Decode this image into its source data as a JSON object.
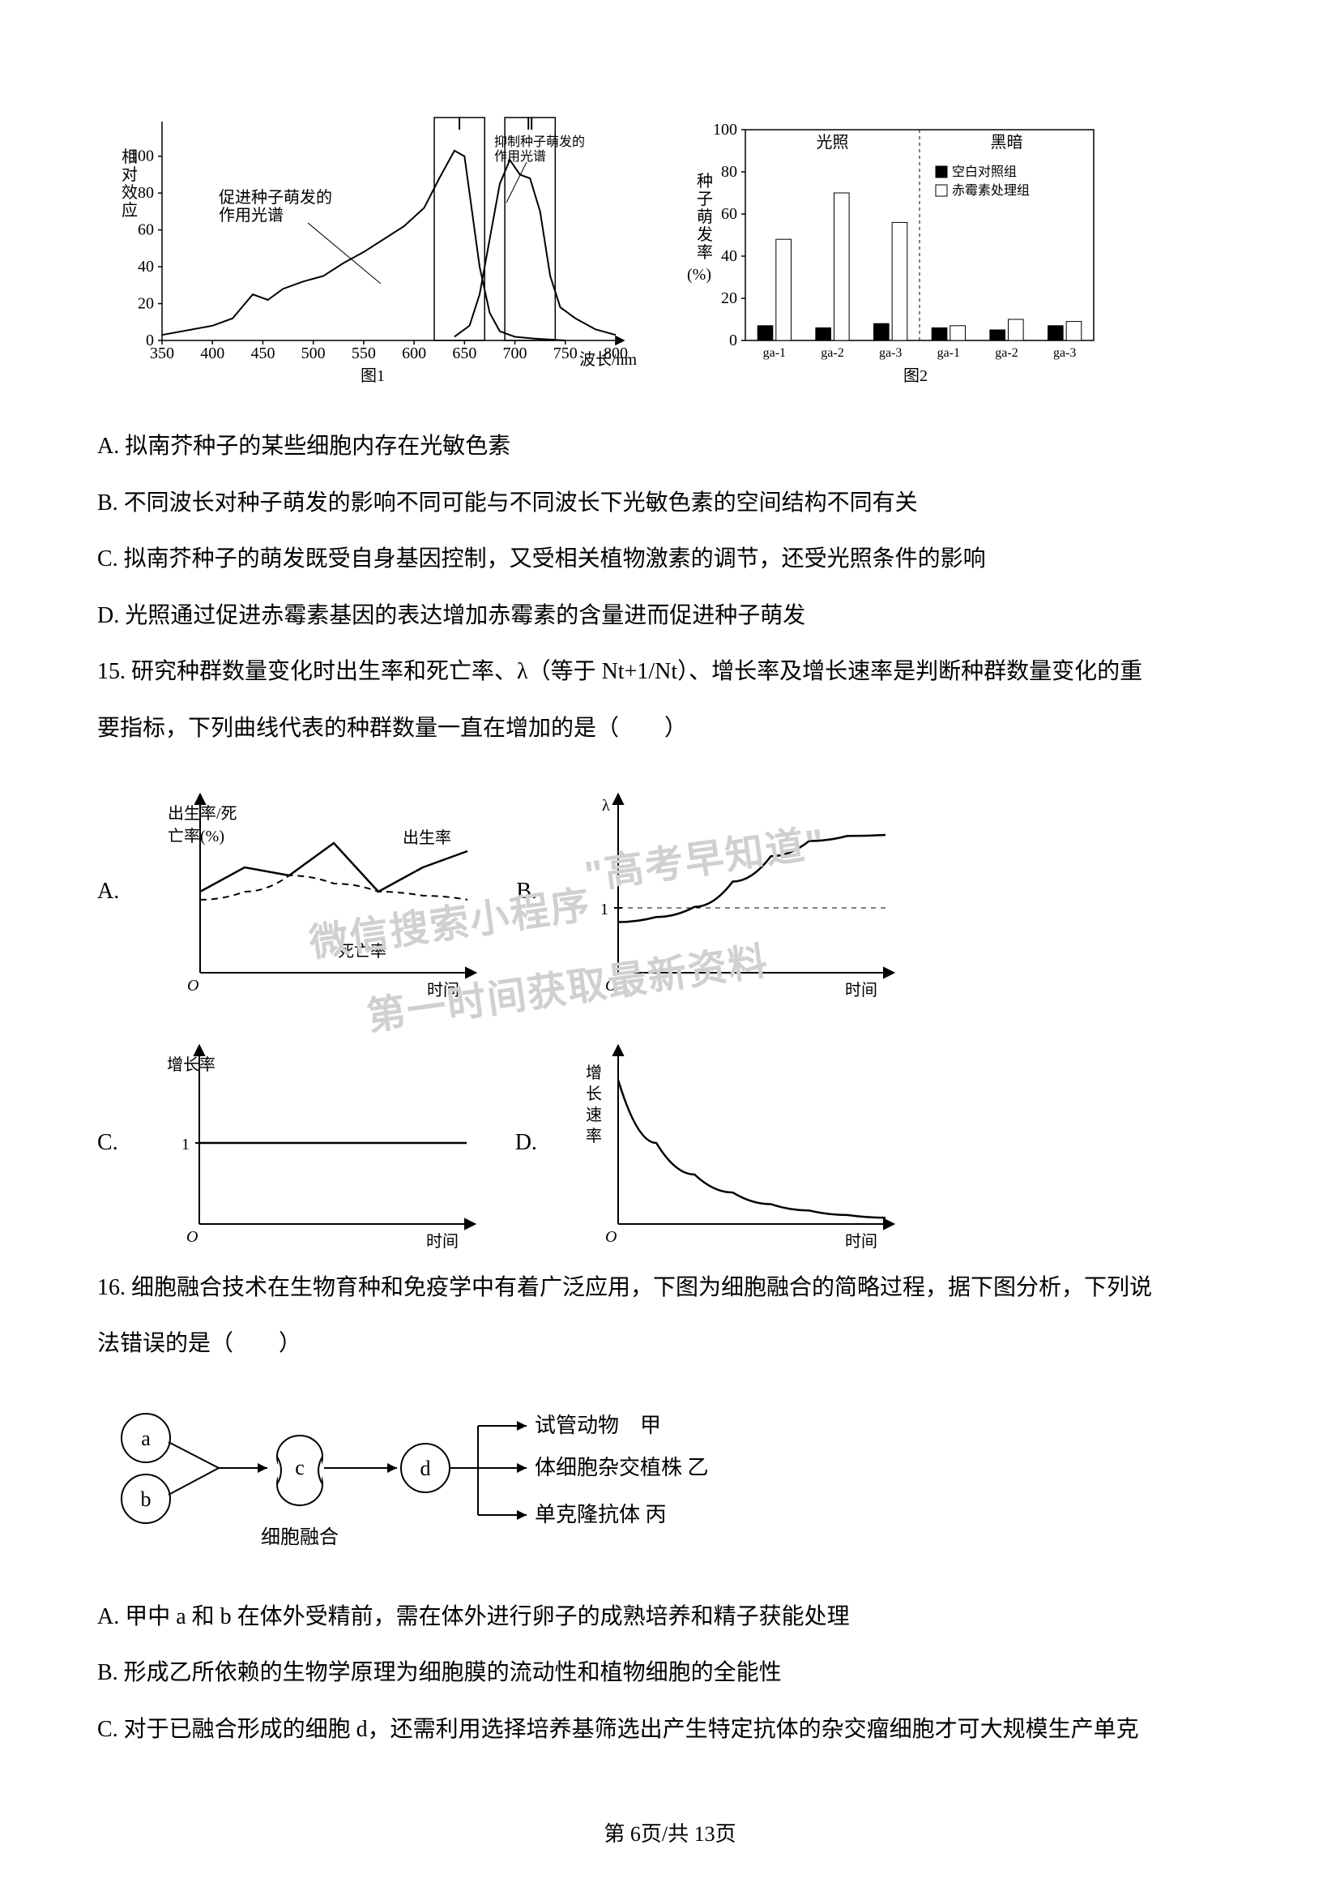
{
  "figure1": {
    "type": "line",
    "ylabel": "相对效应",
    "xlabel": "波长/nm",
    "caption": "图1",
    "ylim": [
      0,
      110
    ],
    "yticks": [
      0,
      20,
      40,
      60,
      80,
      100
    ],
    "xlim": [
      350,
      800
    ],
    "xticks": [
      350,
      400,
      450,
      500,
      550,
      600,
      650,
      700,
      750,
      800
    ],
    "label_promote": "促进种子萌发的作用光谱",
    "label_inhibit": "抑制种子萌发的作用光谱",
    "box1_label": "Ⅰ",
    "box2_label": "Ⅱ",
    "box1_range": [
      620,
      670
    ],
    "box2_range": [
      690,
      740
    ],
    "line_color": "#000000",
    "background_color": "#ffffff",
    "axis_color": "#000000",
    "series_promote": [
      [
        350,
        3
      ],
      [
        380,
        6
      ],
      [
        400,
        8
      ],
      [
        420,
        12
      ],
      [
        440,
        25
      ],
      [
        455,
        22
      ],
      [
        470,
        28
      ],
      [
        490,
        32
      ],
      [
        510,
        35
      ],
      [
        530,
        42
      ],
      [
        550,
        48
      ],
      [
        570,
        55
      ],
      [
        590,
        62
      ],
      [
        610,
        72
      ],
      [
        625,
        88
      ],
      [
        640,
        103
      ],
      [
        650,
        100
      ],
      [
        655,
        80
      ],
      [
        665,
        40
      ],
      [
        675,
        15
      ],
      [
        685,
        5
      ],
      [
        700,
        2
      ],
      [
        720,
        1
      ],
      [
        750,
        0
      ]
    ],
    "series_inhibit": [
      [
        640,
        2
      ],
      [
        655,
        8
      ],
      [
        665,
        25
      ],
      [
        675,
        55
      ],
      [
        685,
        85
      ],
      [
        695,
        98
      ],
      [
        705,
        90
      ],
      [
        715,
        88
      ],
      [
        725,
        70
      ],
      [
        735,
        35
      ],
      [
        745,
        18
      ],
      [
        760,
        12
      ],
      [
        780,
        6
      ],
      [
        800,
        3
      ]
    ]
  },
  "figure2": {
    "type": "bar",
    "ylabel": "种子萌发率（%）",
    "caption": "图2",
    "ylim": [
      0,
      100
    ],
    "yticks": [
      0,
      20,
      40,
      60,
      80,
      100
    ],
    "section_left": "光照",
    "section_right": "黑暗",
    "legend_blank": "空白对照组",
    "legend_ga": "赤霉素处理组",
    "categories": [
      "ga-1",
      "ga-2",
      "ga-3",
      "ga-1",
      "ga-2",
      "ga-3"
    ],
    "blank_values": [
      7,
      6,
      8,
      6,
      5,
      7
    ],
    "ga_values": [
      48,
      70,
      56,
      7,
      10,
      9
    ],
    "bar_blank_color": "#000000",
    "bar_ga_color": "#ffffff",
    "bar_border": "#000000",
    "background_color": "#ffffff",
    "axis_color": "#000000",
    "divider_x": 3
  },
  "options_top": {
    "A": "A. 拟南芥种子的某些细胞内存在光敏色素",
    "B": "B. 不同波长对种子萌发的影响不同可能与不同波长下光敏色素的空间结构不同有关",
    "C": "C. 拟南芥种子的萌发既受自身基因控制，又受相关植物激素的调节，还受光照条件的影响",
    "D": "D. 光照通过促进赤霉素基因的表达增加赤霉素的含量进而促进种子萌发"
  },
  "q15": {
    "stem1": "15. 研究种群数量变化时出生率和死亡率、λ（等于 Nt+1/Nt）、增长率及增长速率是判断种群数量变化的重",
    "stem2": "要指标，下列曲线代表的种群数量一直在增加的是（　　）",
    "A_label": "A.",
    "B_label": "B.",
    "C_label": "C.",
    "D_label": "D.",
    "chartA": {
      "type": "line",
      "ylabel": "出生率/死亡率(%)",
      "xlabel": "时间",
      "label_birth": "出生率",
      "label_death": "死亡率",
      "line_color": "#000000",
      "dash_color": "#000000",
      "birth_series": [
        [
          0,
          1.0
        ],
        [
          1,
          1.3
        ],
        [
          2,
          1.2
        ],
        [
          3,
          1.6
        ],
        [
          4,
          1.0
        ],
        [
          5,
          1.3
        ],
        [
          6,
          1.5
        ]
      ],
      "death_series": [
        [
          0,
          0.9
        ],
        [
          1,
          1.0
        ],
        [
          2,
          1.2
        ],
        [
          3,
          1.1
        ],
        [
          4,
          1.0
        ],
        [
          5,
          0.95
        ],
        [
          6,
          0.9
        ]
      ]
    },
    "chartB": {
      "type": "line",
      "ylabel": "λ",
      "xlabel": "时间",
      "ybaseline": "1",
      "line_color": "#000000",
      "series": [
        [
          0,
          0.5
        ],
        [
          1,
          0.55
        ],
        [
          2,
          0.65
        ],
        [
          3,
          0.9
        ],
        [
          4,
          1.15
        ],
        [
          5,
          1.3
        ],
        [
          6,
          1.35
        ],
        [
          7,
          1.36
        ]
      ]
    },
    "chartC": {
      "type": "line",
      "ylabel": "增长率",
      "xlabel": "时间",
      "ybaseline": "1",
      "line_color": "#000000",
      "series": [
        [
          0,
          1
        ],
        [
          7,
          1
        ]
      ]
    },
    "chartD": {
      "type": "line",
      "ylabel": "增长速率",
      "xlabel": "时间",
      "line_color": "#000000",
      "series": [
        [
          0,
          1.6
        ],
        [
          1,
          0.9
        ],
        [
          2,
          0.55
        ],
        [
          3,
          0.35
        ],
        [
          4,
          0.22
        ],
        [
          5,
          0.15
        ],
        [
          6,
          0.1
        ],
        [
          7,
          0.07
        ]
      ]
    }
  },
  "q16": {
    "stem1": "16. 细胞融合技术在生物育种和免疫学中有着广泛应用，下图为细胞融合的简略过程，据下图分析，下列说",
    "stem2": "法错误的是（　　）",
    "diagram": {
      "type": "flowchart",
      "nodes": {
        "a": "a",
        "b": "b",
        "c": "c",
        "d": "d"
      },
      "fusion_label": "细胞融合",
      "out1": "试管动物　甲",
      "out2": "体细胞杂交植株 乙",
      "out3": "单克隆抗体 丙",
      "node_border": "#000000",
      "node_fill": "#ffffff",
      "arrow_color": "#000000"
    },
    "A": "A. 甲中 a 和 b 在体外受精前，需在体外进行卵子的成熟培养和精子获能处理",
    "B": "B. 形成乙所依赖的生物学原理为细胞膜的流动性和植物细胞的全能性",
    "C": "C. 对于已融合形成的细胞 d，还需利用选择培养基筛选出产生特定抗体的杂交瘤细胞才可大规模生产单克"
  },
  "watermark": {
    "line1": "\"高考早知道\"",
    "line2": "微信搜索小程序",
    "line3": "第一时间获取最新资料"
  },
  "footer": "第 6页/共 13页"
}
